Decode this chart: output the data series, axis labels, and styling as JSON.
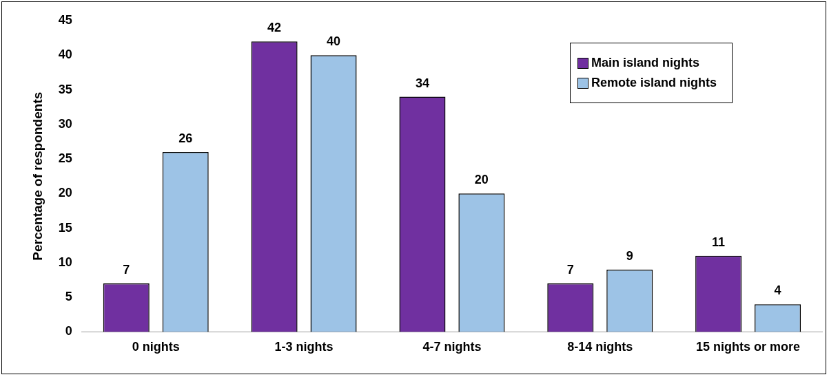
{
  "chart_data": {
    "type": "bar",
    "ylabel": "Percentage of respondents",
    "categories": [
      "0 nights",
      "1-3 nights",
      "4-7 nights",
      "8-14 nights",
      "15 nights or more"
    ],
    "series": [
      {
        "name": "Main island nights",
        "color": "#7030a0",
        "values": [
          7,
          42,
          34,
          7,
          11
        ]
      },
      {
        "name": "Remote island nights",
        "color": "#9dc3e6",
        "values": [
          26,
          40,
          20,
          9,
          4
        ]
      }
    ],
    "ylim": [
      0,
      45
    ],
    "yticks": [
      0,
      5,
      10,
      15,
      20,
      25,
      30,
      35,
      40,
      45
    ],
    "grid": false,
    "legend": "top right",
    "data_labels": true
  }
}
